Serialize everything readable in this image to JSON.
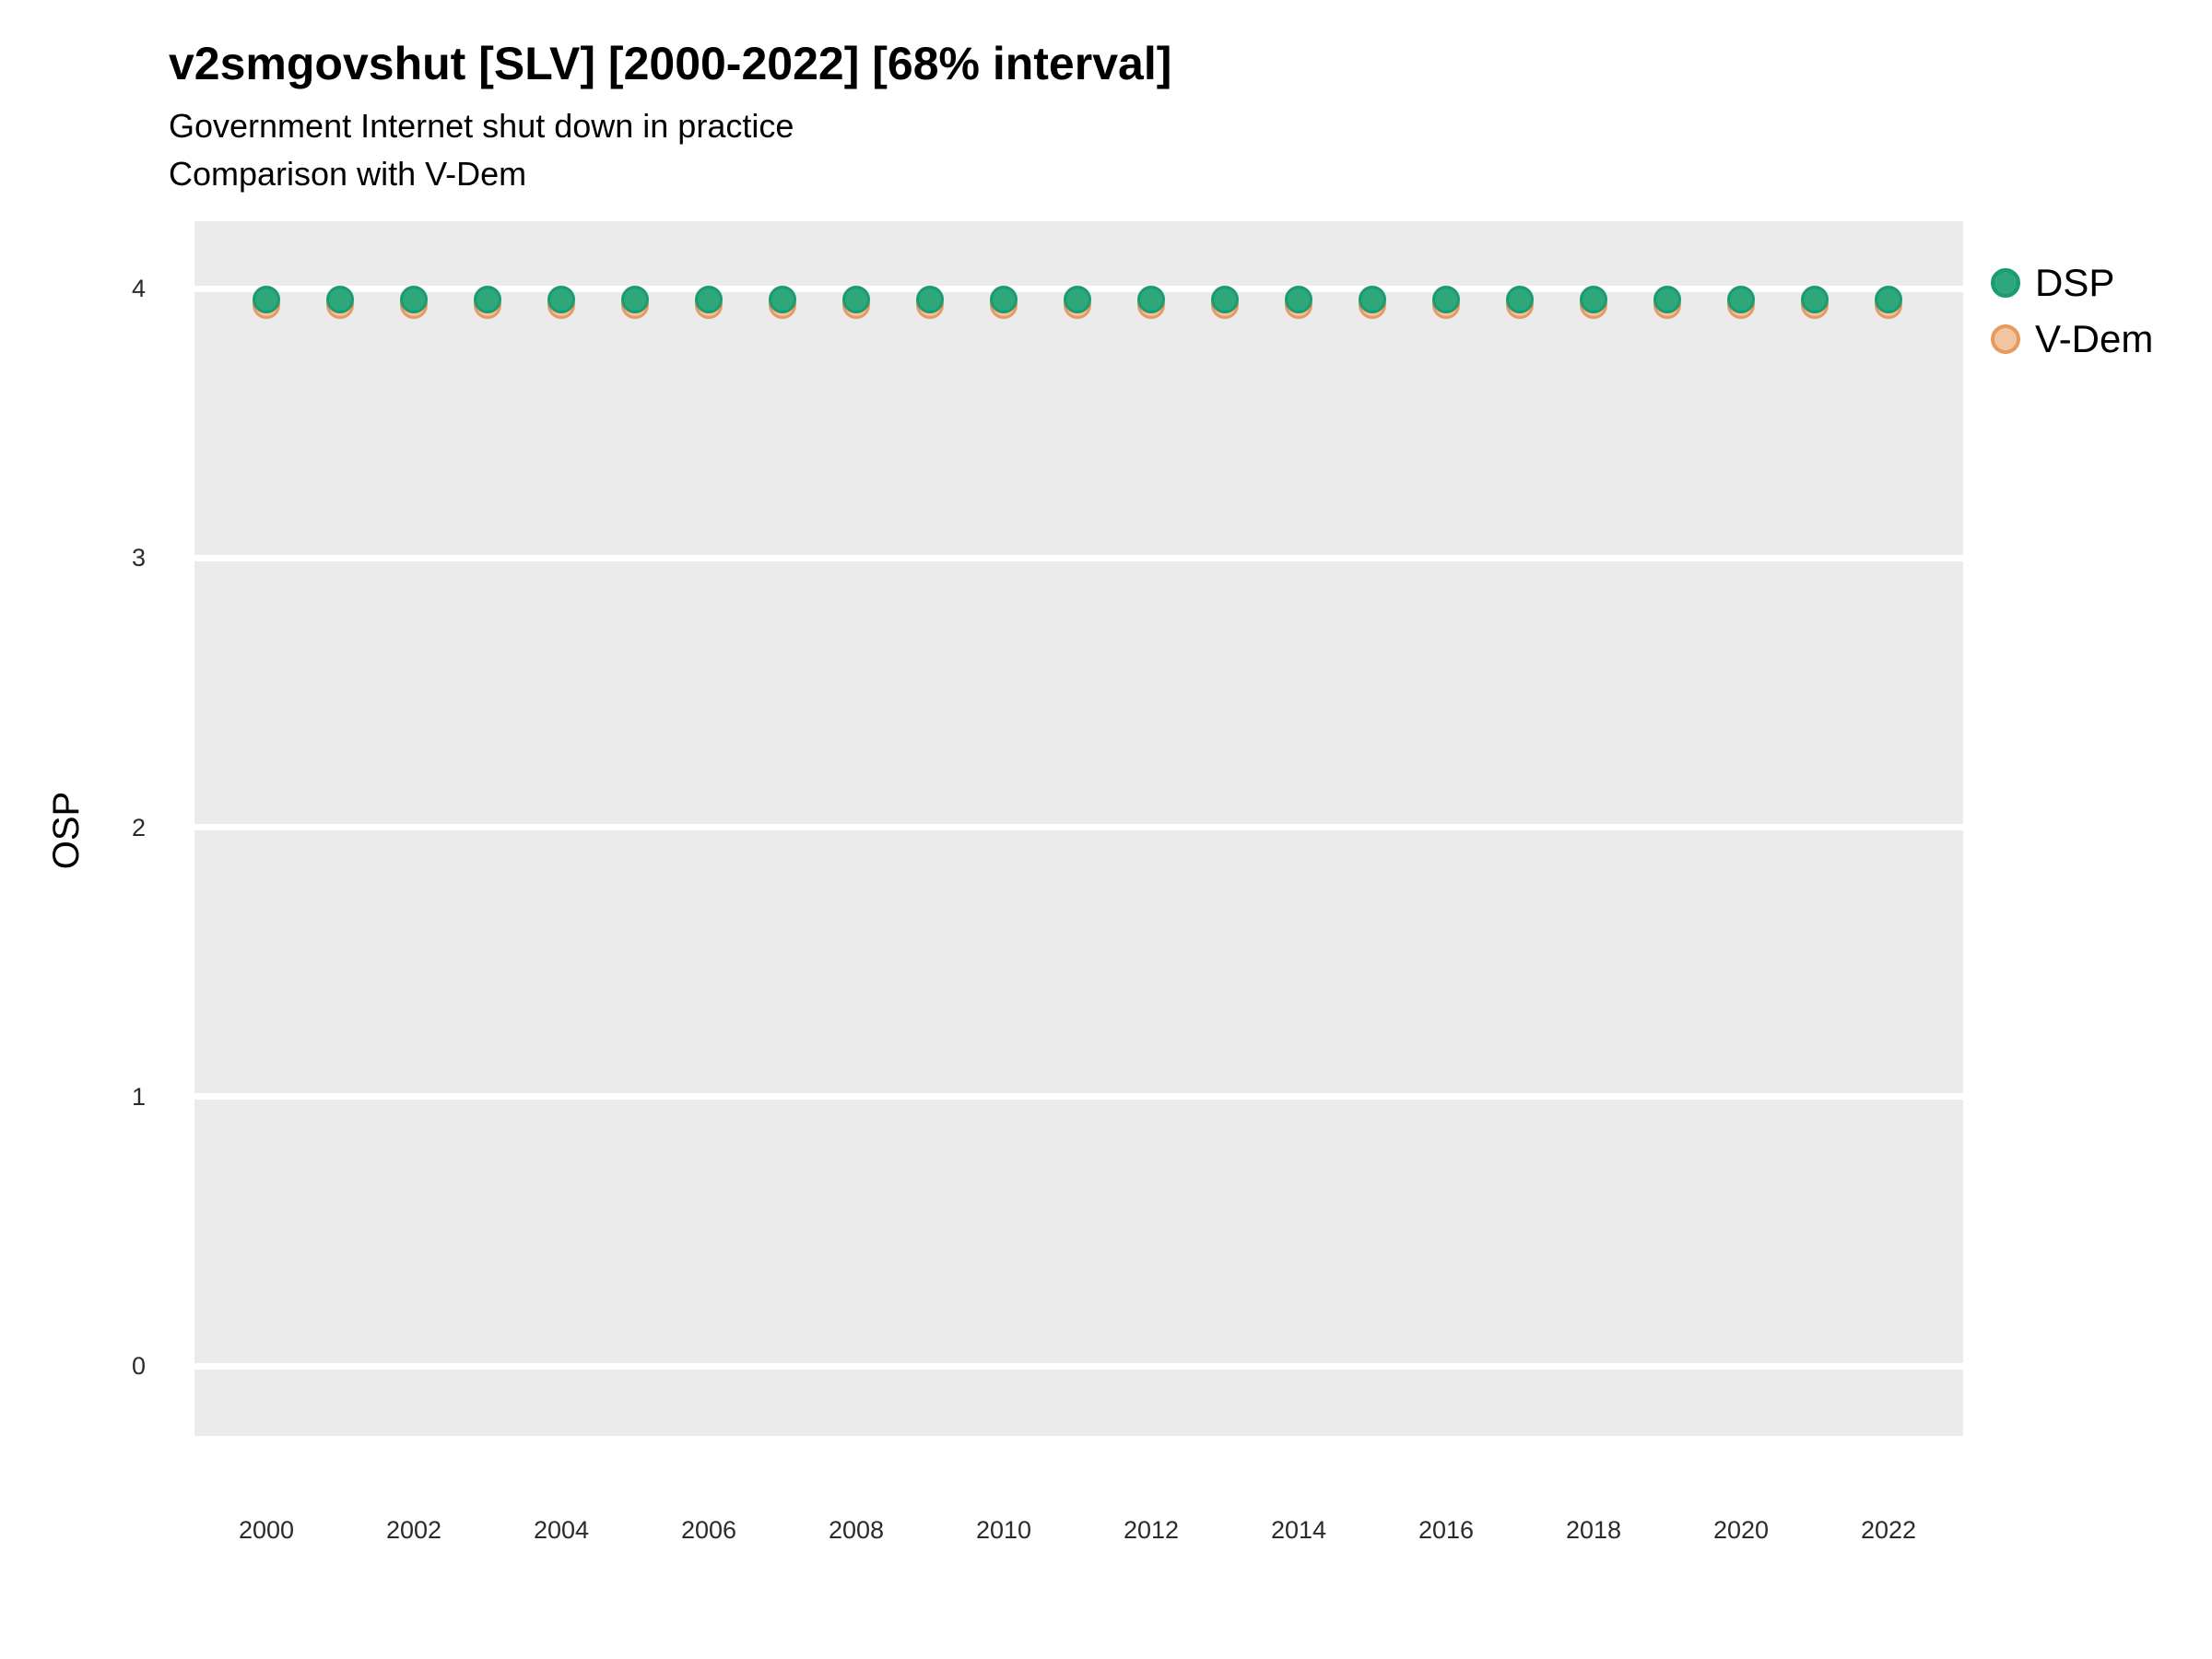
{
  "header": {
    "title": "v2smgovshut [SLV] [2000-2022] [68% interval]",
    "subtitle1": "Government Internet shut down in practice",
    "subtitle2": "Comparison with V-Dem"
  },
  "chart_data": {
    "type": "scatter",
    "title": "v2smgovshut [SLV] [2000-2022] [68% interval]",
    "subtitle1": "Government Internet shut down in practice",
    "subtitle2": "Comparison with V-Dem",
    "xlabel": "",
    "ylabel": "OSP",
    "x": [
      2000,
      2001,
      2002,
      2003,
      2004,
      2005,
      2006,
      2007,
      2008,
      2009,
      2010,
      2011,
      2012,
      2013,
      2014,
      2015,
      2016,
      2017,
      2018,
      2019,
      2020,
      2021,
      2022
    ],
    "series": [
      {
        "name": "DSP",
        "marker_fill": "#2EA77D",
        "marker_stroke": "#1C9A70",
        "values": [
          3.96,
          3.96,
          3.96,
          3.96,
          3.96,
          3.96,
          3.96,
          3.96,
          3.96,
          3.96,
          3.96,
          3.96,
          3.96,
          3.96,
          3.96,
          3.96,
          3.96,
          3.96,
          3.96,
          3.96,
          3.96,
          3.96,
          3.96
        ]
      },
      {
        "name": "V-Dem",
        "marker_fill": "#F4C49F",
        "marker_stroke": "#E8995F",
        "values": [
          3.94,
          3.94,
          3.94,
          3.94,
          3.94,
          3.94,
          3.94,
          3.94,
          3.94,
          3.94,
          3.94,
          3.94,
          3.94,
          3.94,
          3.94,
          3.94,
          3.94,
          3.94,
          3.94,
          3.94,
          3.94,
          3.94,
          3.94
        ]
      }
    ],
    "xticks": [
      2000,
      2002,
      2004,
      2006,
      2008,
      2010,
      2012,
      2014,
      2016,
      2018,
      2020,
      2022
    ],
    "yticks": [
      0,
      1,
      2,
      3,
      4
    ],
    "xlim": [
      1999,
      2023
    ],
    "ylim": [
      -0.26,
      4.25
    ],
    "grid": "horizontal-major-only",
    "legend_position": "right-top",
    "panel_background": "#EBEBEB",
    "grid_color": "#FFFFFF",
    "text_color": "#000000"
  },
  "legend": {
    "items": [
      {
        "label": "DSP"
      },
      {
        "label": "V-Dem"
      }
    ]
  }
}
